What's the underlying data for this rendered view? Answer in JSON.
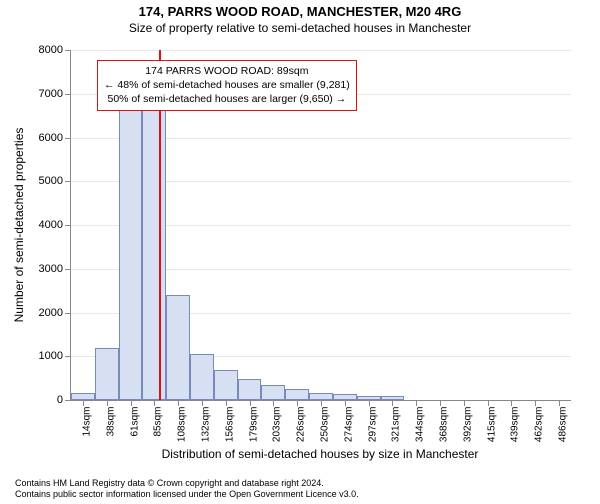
{
  "title": "174, PARRS WOOD ROAD, MANCHESTER, M20 4RG",
  "subtitle": "Size of property relative to semi-detached houses in Manchester",
  "y_axis_title": "Number of semi-detached properties",
  "x_axis_title": "Distribution of semi-detached houses by size in Manchester",
  "footer_line1": "Contains HM Land Registry data © Crown copyright and database right 2024.",
  "footer_line2": "Contains public sector information licensed under the Open Government Licence v3.0.",
  "chart": {
    "type": "histogram",
    "background_color": "#ffffff",
    "grid_color": "#e8e8e8",
    "axis_color": "#888888",
    "bar_fill": "#d7e0f2",
    "bar_stroke": "#7a8ab8",
    "ref_line_color": "#dd1111",
    "y_max": 8000,
    "y_ticks": [
      0,
      1000,
      2000,
      3000,
      4000,
      5000,
      6000,
      7000,
      8000
    ],
    "x_labels": [
      "14sqm",
      "38sqm",
      "61sqm",
      "85sqm",
      "108sqm",
      "132sqm",
      "156sqm",
      "179sqm",
      "203sqm",
      "226sqm",
      "250sqm",
      "274sqm",
      "297sqm",
      "321sqm",
      "344sqm",
      "368sqm",
      "392sqm",
      "415sqm",
      "439sqm",
      "462sqm",
      "486sqm"
    ],
    "bars": [
      150,
      1200,
      6800,
      7600,
      2400,
      1050,
      680,
      480,
      340,
      250,
      170,
      130,
      100,
      100,
      0,
      0,
      0,
      0,
      0,
      0,
      0
    ],
    "ref_index": 3.2,
    "label_fontsize": 11
  },
  "annotation": {
    "line1": "174 PARRS WOOD ROAD: 89sqm",
    "line2": "← 48% of semi-detached houses are smaller (9,281)",
    "line3": "50% of semi-detached houses are larger (9,650) →",
    "border_color": "#dd1111",
    "bg_color": "#ffffff",
    "fontsize": 10.5
  }
}
